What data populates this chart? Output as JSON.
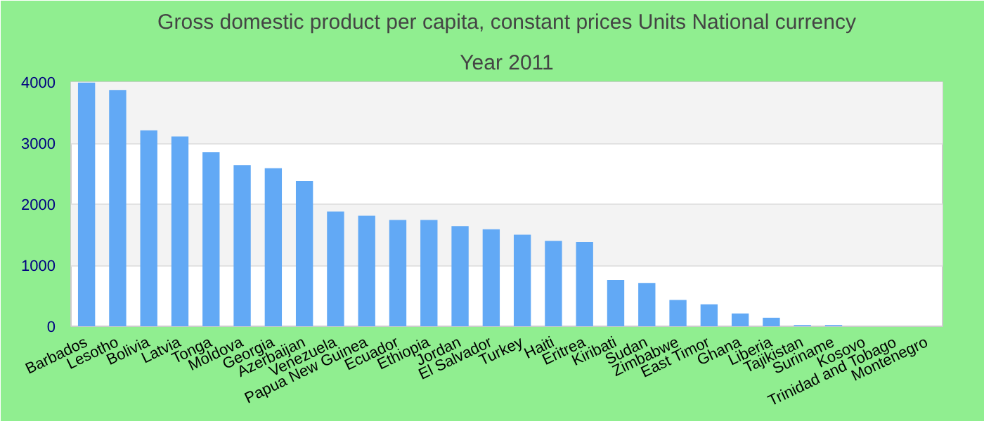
{
  "chart_data": {
    "type": "bar",
    "title": "Gross domestic product per capita, constant prices Units National currency",
    "subtitle": "Year 2011",
    "categories": [
      "Barbados",
      "Lesotho",
      "Bolivia",
      "Latvia",
      "Tonga",
      "Moldova",
      "Georgia",
      "Azerbaijan",
      "Venezuela",
      "Papua New Guinea",
      "Ecuador",
      "Ethiopia",
      "Jordan",
      "El Salvador",
      "Turkey",
      "Haiti",
      "Eritrea",
      "Kiribati",
      "Sudan",
      "Zimbabwe",
      "East Timor",
      "Ghana",
      "Liberia",
      "Tajikistan",
      "Suriname",
      "Kosovo",
      "Trinidad and Tobago",
      "Montenegro"
    ],
    "values": [
      3990,
      3870,
      3210,
      3110,
      2850,
      2640,
      2590,
      2380,
      1880,
      1810,
      1740,
      1740,
      1640,
      1590,
      1500,
      1400,
      1380,
      760,
      710,
      430,
      360,
      210,
      140,
      20,
      20,
      null,
      null,
      null
    ],
    "color": "#62a9f5",
    "ylim": [
      0,
      4000
    ],
    "yticks": [
      0,
      1000,
      2000,
      3000,
      4000
    ],
    "grid": "y"
  }
}
